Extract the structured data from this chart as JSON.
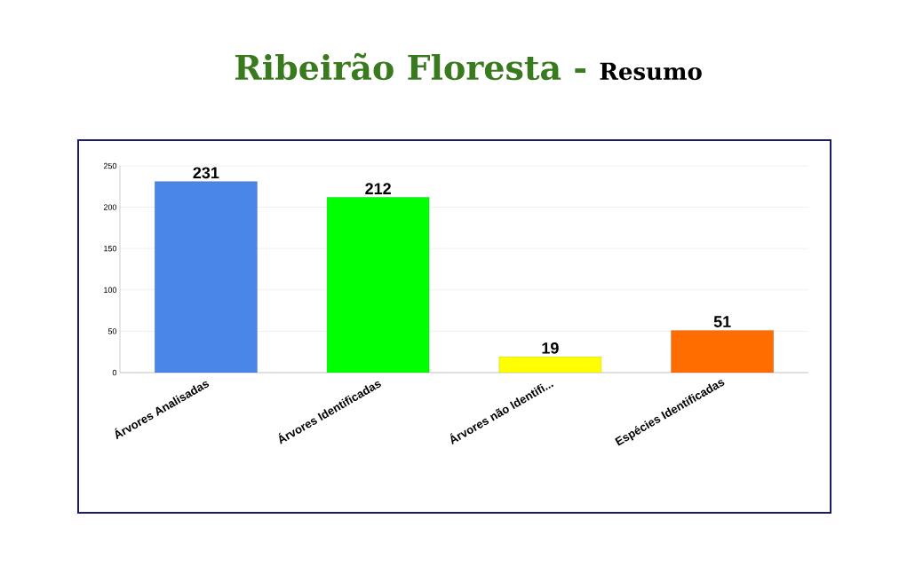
{
  "chart_data": {
    "type": "bar",
    "title": "Ribeirão Floresta -",
    "subtitle": "Resumo",
    "categories": [
      "Árvores Analisadas",
      "Árvores Identificadas",
      "Árvores não Identifi...",
      "Espécies Identificadas"
    ],
    "values": [
      231,
      212,
      19,
      51
    ],
    "colors": [
      "#4a86e8",
      "#00ff00",
      "#ffff00",
      "#ff6d01"
    ],
    "ylim": [
      0,
      250
    ],
    "yticks": [
      0,
      50,
      100,
      150,
      200,
      250
    ],
    "grid": "y",
    "data_labels": true
  }
}
